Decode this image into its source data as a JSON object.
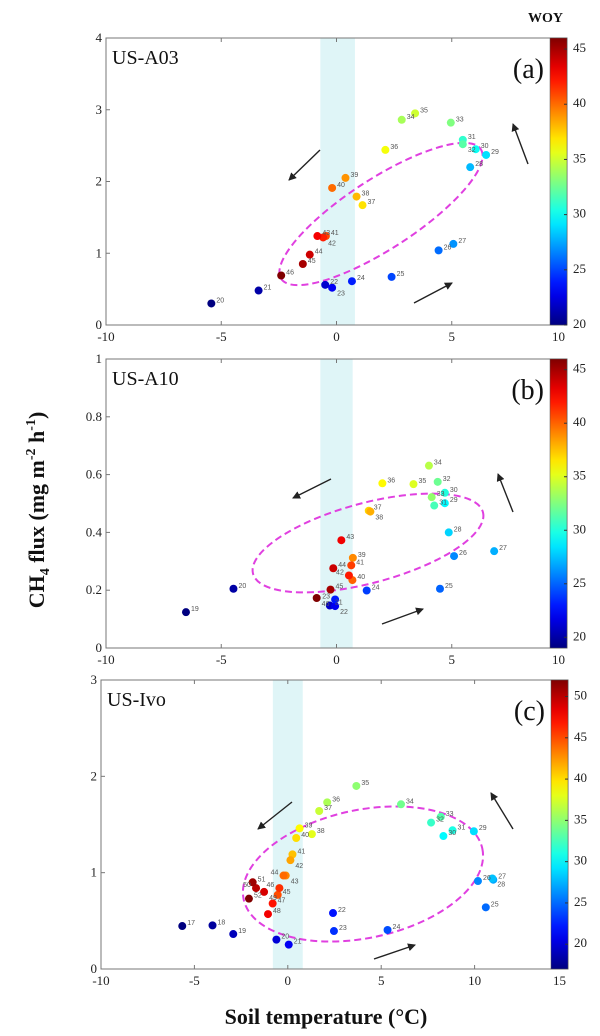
{
  "chart_data": [
    {
      "type": "scatter",
      "site": "US-A03",
      "panel_label": "(a)",
      "xlim": [
        -10,
        10
      ],
      "ylim": [
        0,
        4
      ],
      "xticks": [
        -10,
        -5,
        0,
        5,
        10
      ],
      "yticks": [
        0,
        1,
        2,
        3,
        4
      ],
      "colorbar": {
        "label": "WOY",
        "range": [
          20,
          46
        ],
        "ticks": [
          20,
          25,
          30,
          35,
          40,
          45
        ],
        "colormap": "jet"
      },
      "freezing_band": [
        -0.7,
        0.8
      ],
      "points": [
        {
          "woy": 20,
          "x": -5.43,
          "y": 0.3
        },
        {
          "woy": 21,
          "x": -3.38,
          "y": 0.48
        },
        {
          "woy": 22,
          "x": -0.49,
          "y": 0.56
        },
        {
          "woy": 23,
          "x": -0.19,
          "y": 0.52
        },
        {
          "woy": 24,
          "x": 0.67,
          "y": 0.61
        },
        {
          "woy": 25,
          "x": 2.39,
          "y": 0.67
        },
        {
          "woy": 26,
          "x": 4.43,
          "y": 1.04
        },
        {
          "woy": 27,
          "x": 5.07,
          "y": 1.13
        },
        {
          "woy": 28,
          "x": 5.8,
          "y": 2.2
        },
        {
          "woy": 29,
          "x": 6.49,
          "y": 2.37
        },
        {
          "woy": 30,
          "x": 6.04,
          "y": 2.45
        },
        {
          "woy": 31,
          "x": 5.48,
          "y": 2.58
        },
        {
          "woy": 32,
          "x": 5.48,
          "y": 2.52
        },
        {
          "woy": 33,
          "x": 4.96,
          "y": 2.82
        },
        {
          "woy": 34,
          "x": 2.83,
          "y": 2.86
        },
        {
          "woy": 35,
          "x": 3.41,
          "y": 2.95
        },
        {
          "woy": 36,
          "x": 2.12,
          "y": 2.44
        },
        {
          "woy": 37,
          "x": 1.13,
          "y": 1.67
        },
        {
          "woy": 38,
          "x": 0.87,
          "y": 1.79
        },
        {
          "woy": 39,
          "x": 0.39,
          "y": 2.05
        },
        {
          "woy": 40,
          "x": -0.19,
          "y": 1.91
        },
        {
          "woy": 41,
          "x": -0.46,
          "y": 1.24
        },
        {
          "woy": 42,
          "x": -0.58,
          "y": 1.22
        },
        {
          "woy": 43,
          "x": -0.83,
          "y": 1.24
        },
        {
          "woy": 44,
          "x": -1.16,
          "y": 0.98
        },
        {
          "woy": 45,
          "x": -1.46,
          "y": 0.85
        },
        {
          "woy": 46,
          "x": -2.4,
          "y": 0.69
        }
      ]
    },
    {
      "type": "scatter",
      "site": "US-A10",
      "panel_label": "(b)",
      "xlim": [
        -10,
        10
      ],
      "ylim": [
        0,
        1
      ],
      "xticks": [
        -10,
        -5,
        0,
        5,
        10
      ],
      "yticks": [
        0,
        0.2,
        0.4,
        0.6,
        0.8,
        1
      ],
      "colorbar": {
        "label": "WOY",
        "range": [
          19,
          46
        ],
        "ticks": [
          20,
          25,
          30,
          35,
          40,
          45
        ],
        "colormap": "jet"
      },
      "freezing_band": [
        -0.7,
        0.7
      ],
      "points": [
        {
          "woy": 19,
          "x": -6.53,
          "y": 0.124
        },
        {
          "woy": 20,
          "x": -4.47,
          "y": 0.205
        },
        {
          "woy": 21,
          "x": -0.29,
          "y": 0.147
        },
        {
          "woy": 22,
          "x": -0.06,
          "y": 0.145
        },
        {
          "woy": 23,
          "x": -0.06,
          "y": 0.168
        },
        {
          "woy": 24,
          "x": 1.31,
          "y": 0.199
        },
        {
          "woy": 25,
          "x": 4.49,
          "y": 0.205
        },
        {
          "woy": 26,
          "x": 5.1,
          "y": 0.318
        },
        {
          "woy": 27,
          "x": 6.84,
          "y": 0.335
        },
        {
          "woy": 28,
          "x": 4.87,
          "y": 0.4
        },
        {
          "woy": 29,
          "x": 4.7,
          "y": 0.501
        },
        {
          "woy": 30,
          "x": 4.7,
          "y": 0.537
        },
        {
          "woy": 31,
          "x": 4.24,
          "y": 0.493
        },
        {
          "woy": 32,
          "x": 4.39,
          "y": 0.575
        },
        {
          "woy": 33,
          "x": 4.13,
          "y": 0.522
        },
        {
          "woy": 34,
          "x": 4.01,
          "y": 0.631
        },
        {
          "woy": 35,
          "x": 3.34,
          "y": 0.567
        },
        {
          "woy": 36,
          "x": 1.99,
          "y": 0.57
        },
        {
          "woy": 37,
          "x": 1.4,
          "y": 0.475
        },
        {
          "woy": 38,
          "x": 1.47,
          "y": 0.472
        },
        {
          "woy": 39,
          "x": 0.71,
          "y": 0.312
        },
        {
          "woy": 40,
          "x": 0.69,
          "y": 0.235
        },
        {
          "woy": 41,
          "x": 0.64,
          "y": 0.286
        },
        {
          "woy": 42,
          "x": 0.54,
          "y": 0.251
        },
        {
          "woy": 43,
          "x": 0.21,
          "y": 0.373
        },
        {
          "woy": 44,
          "x": -0.14,
          "y": 0.276
        },
        {
          "woy": 45,
          "x": -0.26,
          "y": 0.202
        },
        {
          "woy": 46,
          "x": -0.86,
          "y": 0.173
        }
      ]
    },
    {
      "type": "scatter",
      "site": "US-Ivo",
      "panel_label": "(c)",
      "xlim": [
        -10,
        15
      ],
      "ylim": [
        0,
        3
      ],
      "xticks": [
        -10,
        -5,
        0,
        5,
        10,
        15
      ],
      "yticks": [
        0,
        1,
        2,
        3
      ],
      "colorbar": {
        "label": "WOY",
        "range": [
          17,
          52
        ],
        "ticks": [
          20,
          25,
          30,
          35,
          40,
          45,
          50
        ],
        "colormap": "jet"
      },
      "freezing_band": [
        -0.8,
        0.8
      ],
      "points": [
        {
          "woy": 17,
          "x": -5.65,
          "y": 0.446
        },
        {
          "woy": 18,
          "x": -4.03,
          "y": 0.453
        },
        {
          "woy": 19,
          "x": -2.92,
          "y": 0.363
        },
        {
          "woy": 20,
          "x": -0.61,
          "y": 0.305
        },
        {
          "woy": 21,
          "x": 0.05,
          "y": 0.253
        },
        {
          "woy": 22,
          "x": 2.42,
          "y": 0.581
        },
        {
          "woy": 23,
          "x": 2.47,
          "y": 0.394
        },
        {
          "woy": 24,
          "x": 5.34,
          "y": 0.405
        },
        {
          "woy": 25,
          "x": 10.6,
          "y": 0.64
        },
        {
          "woy": 26,
          "x": 10.18,
          "y": 0.913
        },
        {
          "woy": 27,
          "x": 11.0,
          "y": 0.927
        },
        {
          "woy": 28,
          "x": 10.95,
          "y": 0.94
        },
        {
          "woy": 29,
          "x": 9.96,
          "y": 1.43
        },
        {
          "woy": 30,
          "x": 8.33,
          "y": 1.38
        },
        {
          "woy": 31,
          "x": 8.82,
          "y": 1.44
        },
        {
          "woy": 32,
          "x": 7.67,
          "y": 1.52
        },
        {
          "woy": 33,
          "x": 8.19,
          "y": 1.58
        },
        {
          "woy": 34,
          "x": 6.06,
          "y": 1.71
        },
        {
          "woy": 35,
          "x": 3.67,
          "y": 1.9
        },
        {
          "woy": 36,
          "x": 2.11,
          "y": 1.73
        },
        {
          "woy": 37,
          "x": 1.68,
          "y": 1.64
        },
        {
          "woy": 38,
          "x": 1.29,
          "y": 1.4
        },
        {
          "woy": 39,
          "x": 0.63,
          "y": 1.46
        },
        {
          "woy": 40,
          "x": 0.45,
          "y": 1.36
        },
        {
          "woy": 41,
          "x": 0.25,
          "y": 1.19
        },
        {
          "woy": 42,
          "x": 0.14,
          "y": 1.13
        },
        {
          "woy": 43,
          "x": -0.11,
          "y": 0.97
        },
        {
          "woy": 44,
          "x": -0.23,
          "y": 0.97
        },
        {
          "woy": 45,
          "x": -0.54,
          "y": 0.77
        },
        {
          "woy": 46,
          "x": -0.45,
          "y": 0.84
        },
        {
          "woy": 47,
          "x": -0.81,
          "y": 0.68
        },
        {
          "woy": 48,
          "x": -1.06,
          "y": 0.57
        },
        {
          "woy": 49,
          "x": -1.27,
          "y": 0.8
        },
        {
          "woy": 50,
          "x": -1.7,
          "y": 0.84
        },
        {
          "woy": 51,
          "x": -1.88,
          "y": 0.9
        },
        {
          "woy": 52,
          "x": -2.08,
          "y": 0.73
        }
      ]
    }
  ],
  "labels": {
    "ylabel_main": "CH",
    "ylabel_sub": "4",
    "ylabel_rest": " flux (mg m",
    "ylabel_exp1": "-2",
    "ylabel_mid": " h",
    "ylabel_exp2": "-1",
    "ylabel_end": ")",
    "xlabel": "Soil temperature (°C)",
    "colorbar_title": "WOY"
  },
  "colors": {
    "ellipse": "#e040e0",
    "freezing_band": "#dff5f7",
    "arrow": "#222222"
  }
}
